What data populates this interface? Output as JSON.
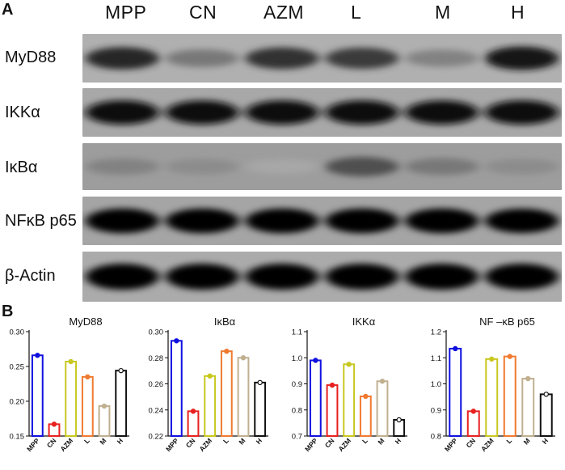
{
  "panel_a": {
    "letter": "A",
    "lanes": [
      "MPP",
      "CN",
      "AZM",
      "L",
      "M",
      "H"
    ],
    "blots": [
      {
        "label": "MyD88",
        "intensity": [
          0.75,
          0.35,
          0.7,
          0.65,
          0.3,
          0.85
        ],
        "bg": 0.56
      },
      {
        "label": "IKKα",
        "intensity": [
          0.9,
          0.88,
          0.9,
          0.9,
          0.88,
          0.9
        ],
        "bg": 0.62
      },
      {
        "label": "IκBα",
        "intensity": [
          0.3,
          0.25,
          0.12,
          0.55,
          0.35,
          0.25
        ],
        "bg": 0.7
      },
      {
        "label": "NFκB p65",
        "intensity": [
          0.95,
          0.95,
          0.95,
          0.95,
          0.95,
          0.92
        ],
        "bg": 0.64
      },
      {
        "label": "β-Actin",
        "intensity": [
          1.0,
          1.0,
          1.0,
          1.0,
          1.0,
          1.0
        ],
        "bg": 0.6
      }
    ]
  },
  "panel_b": {
    "letter": "B",
    "colors": [
      "#1010e0",
      "#e82020",
      "#c8c820",
      "#f07a30",
      "#c0b090",
      "#111111"
    ],
    "chart_data": [
      {
        "type": "bar",
        "title": "MyD88",
        "categories": [
          "MPP",
          "CN",
          "AZM",
          "L",
          "M",
          "H"
        ],
        "values": [
          0.266,
          0.167,
          0.257,
          0.235,
          0.193,
          0.244
        ],
        "ylim": [
          0.15,
          0.3
        ],
        "yticks": [
          "0.15",
          "0.20",
          "0.25",
          "0.30"
        ]
      },
      {
        "type": "bar",
        "title": "IκBα",
        "categories": [
          "MPP",
          "CN",
          "AZM",
          "L",
          "M",
          "H"
        ],
        "values": [
          0.293,
          0.239,
          0.266,
          0.285,
          0.28,
          0.261
        ],
        "ylim": [
          0.22,
          0.3
        ],
        "yticks": [
          "0.22",
          "0.24",
          "0.26",
          "0.28",
          "0.30"
        ]
      },
      {
        "type": "bar",
        "title": "IKKα",
        "categories": [
          "MPP",
          "CN",
          "AZM",
          "L",
          "M",
          "H"
        ],
        "values": [
          0.99,
          0.895,
          0.975,
          0.852,
          0.91,
          0.762
        ],
        "ylim": [
          0.7,
          1.1
        ],
        "yticks": [
          "0.7",
          "0.8",
          "0.9",
          "1.0",
          "1.1"
        ]
      },
      {
        "type": "bar",
        "title": "NF –κB p65",
        "categories": [
          "MPP",
          "CN",
          "AZM",
          "L",
          "M",
          "H"
        ],
        "values": [
          1.135,
          0.895,
          1.095,
          1.105,
          1.02,
          0.96
        ],
        "ylim": [
          0.8,
          1.2
        ],
        "yticks": [
          "0.8",
          "0.9",
          "1.0",
          "1.1",
          "1.2"
        ]
      }
    ]
  }
}
